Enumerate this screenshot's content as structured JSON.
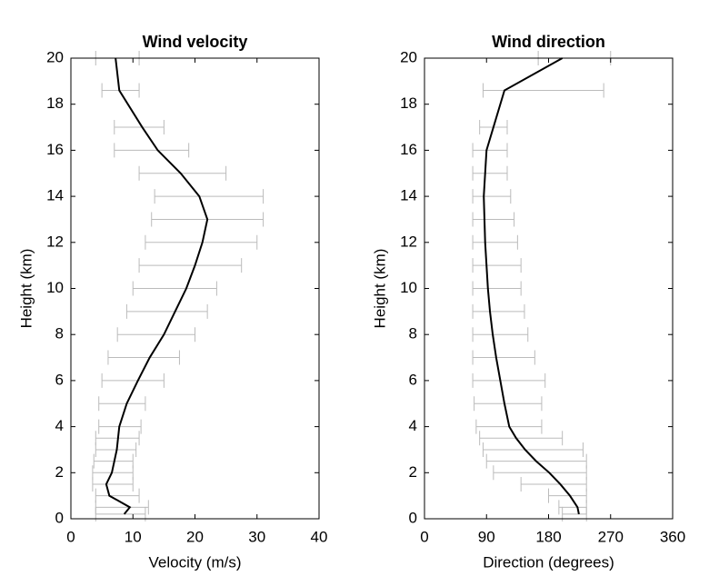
{
  "chart_data": [
    {
      "type": "line",
      "title": "Wind velocity",
      "xlabel": "Velocity (m/s)",
      "ylabel": "Height (km)",
      "y": [
        0.2,
        0.5,
        1,
        1.5,
        2,
        2.5,
        3,
        3.5,
        4,
        5,
        6,
        7,
        8,
        9,
        10,
        11,
        12,
        13,
        14,
        15,
        16,
        17,
        18.6,
        20
      ],
      "values": [
        8.6,
        9.5,
        6.2,
        5.7,
        6.6,
        7.0,
        7.4,
        7.6,
        7.8,
        9,
        10.8,
        12.7,
        15,
        16.8,
        18.6,
        20,
        21.2,
        22,
        20.7,
        17.7,
        14,
        11.5,
        7.8,
        7.2
      ],
      "lower": [
        4,
        4,
        4,
        3.5,
        3.5,
        3.7,
        4,
        4,
        4.5,
        4.5,
        5,
        6,
        7.5,
        9,
        10,
        11,
        12,
        13,
        13.5,
        11,
        7,
        7,
        5,
        4
      ],
      "upper": [
        12,
        12.5,
        11,
        10,
        10,
        10,
        10.5,
        11,
        11.3,
        12,
        15,
        17.5,
        20,
        22,
        23.5,
        27.5,
        30,
        31,
        31,
        25,
        19,
        15,
        11,
        11
      ],
      "color": "#000000",
      "error_color": "#bbbbbb",
      "xlim": [
        0,
        40
      ],
      "xticks": [
        0,
        10,
        20,
        30,
        40
      ],
      "ylim": [
        0,
        20
      ],
      "yticks": [
        0,
        2,
        4,
        6,
        8,
        10,
        12,
        14,
        16,
        18,
        20
      ]
    },
    {
      "type": "line",
      "title": "Wind direction",
      "xlabel": "Direction (degrees)",
      "ylabel": "Height (km)",
      "y": [
        0.2,
        0.5,
        1,
        1.5,
        2,
        2.5,
        3,
        3.5,
        4,
        5,
        6,
        7,
        8,
        9,
        10,
        11,
        12,
        13,
        14,
        15,
        16,
        17,
        18.6,
        20
      ],
      "values": [
        224,
        222,
        211,
        197,
        181,
        162,
        146,
        133,
        123,
        116,
        110,
        104,
        99,
        95,
        92,
        90,
        88,
        87,
        86,
        88,
        90,
        100,
        116,
        200
      ],
      "lower": [
        200,
        195,
        180,
        140,
        100,
        90,
        85,
        80,
        75,
        72,
        70,
        70,
        70,
        70,
        70,
        70,
        70,
        70,
        70,
        70,
        70,
        80,
        85,
        165
      ],
      "upper": [
        235,
        235,
        235,
        235,
        235,
        235,
        230,
        200,
        170,
        170,
        175,
        160,
        150,
        145,
        140,
        140,
        135,
        130,
        125,
        120,
        120,
        120,
        260,
        270
      ],
      "color": "#000000",
      "error_color": "#bbbbbb",
      "xlim": [
        0,
        360
      ],
      "xticks": [
        0,
        90,
        180,
        270,
        360
      ],
      "ylim": [
        0,
        20
      ],
      "yticks": [
        0,
        2,
        4,
        6,
        8,
        10,
        12,
        14,
        16,
        18,
        20
      ]
    }
  ]
}
